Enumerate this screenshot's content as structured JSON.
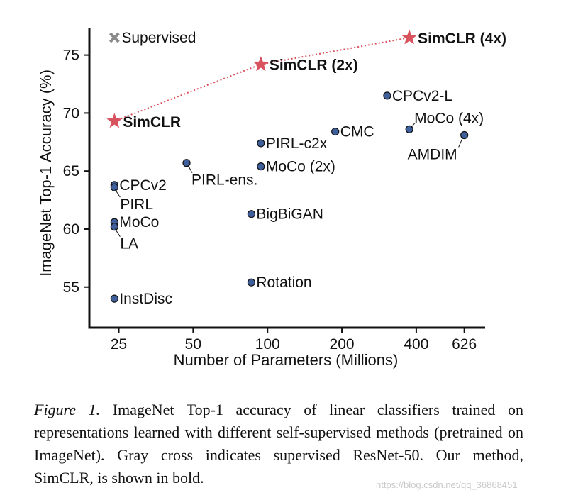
{
  "chart_data": {
    "type": "scatter",
    "xlabel": "Number of Parameters (Millions)",
    "ylabel": "ImageNet Top-1 Accuracy (%)",
    "x_scale": "log",
    "xlim": [
      19,
      760
    ],
    "ylim": [
      51.5,
      77.3
    ],
    "x_ticks": [
      25,
      50,
      100,
      200,
      400,
      626
    ],
    "x_tick_labels": [
      "25",
      "50",
      "100",
      "200",
      "400",
      "626"
    ],
    "y_ticks": [
      55,
      60,
      65,
      70,
      75
    ],
    "y_tick_labels": [
      "55",
      "60",
      "65",
      "70",
      "75"
    ],
    "marker_color": "#3f5f9a",
    "star_color": "#d9535f",
    "cross_color": "#8a8a8a",
    "points": [
      {
        "name": "CPCv2",
        "x": 24,
        "y": 63.8,
        "marker": "circle"
      },
      {
        "name": "PIRL",
        "x": 24,
        "y": 63.6,
        "marker": "circle"
      },
      {
        "name": "MoCo",
        "x": 24,
        "y": 60.6,
        "marker": "circle"
      },
      {
        "name": "LA",
        "x": 24,
        "y": 60.2,
        "marker": "circle"
      },
      {
        "name": "InstDisc",
        "x": 24,
        "y": 54.0,
        "marker": "circle"
      },
      {
        "name": "PIRL-ens.",
        "x": 47,
        "y": 65.7,
        "marker": "circle"
      },
      {
        "name": "PIRL-c2x",
        "x": 94,
        "y": 67.4,
        "marker": "circle"
      },
      {
        "name": "MoCo (2x)",
        "x": 94,
        "y": 65.4,
        "marker": "circle"
      },
      {
        "name": "BigBiGAN",
        "x": 86,
        "y": 61.3,
        "marker": "circle"
      },
      {
        "name": "Rotation",
        "x": 86,
        "y": 55.4,
        "marker": "circle"
      },
      {
        "name": "CMC",
        "x": 188,
        "y": 68.4,
        "marker": "circle"
      },
      {
        "name": "CPCv2-L",
        "x": 305,
        "y": 71.5,
        "marker": "circle"
      },
      {
        "name": "MoCo (4x)",
        "x": 375,
        "y": 68.6,
        "marker": "circle"
      },
      {
        "name": "AMDIM",
        "x": 626,
        "y": 68.1,
        "marker": "circle"
      },
      {
        "name": "SimCLR",
        "x": 24,
        "y": 69.3,
        "marker": "star",
        "bold": true
      },
      {
        "name": "SimCLR (2x)",
        "x": 94,
        "y": 74.2,
        "marker": "star",
        "bold": true
      },
      {
        "name": "SimCLR (4x)",
        "x": 375,
        "y": 76.5,
        "marker": "star",
        "bold": true
      },
      {
        "name": "Supervised",
        "x": 24,
        "y": 76.5,
        "marker": "cross"
      }
    ],
    "trend_line": [
      "SimCLR",
      "SimCLR (2x)",
      "SimCLR (4x)"
    ]
  },
  "caption": {
    "figure_label": "Figure 1.",
    "text": "ImageNet Top-1 accuracy of linear classifiers trained on representations learned with different self-supervised methods (pretrained on ImageNet). Gray cross indicates supervised ResNet-50. Our method, SimCLR, is shown in bold."
  },
  "watermark": "https://blog.csdn.net/qq_36868451"
}
